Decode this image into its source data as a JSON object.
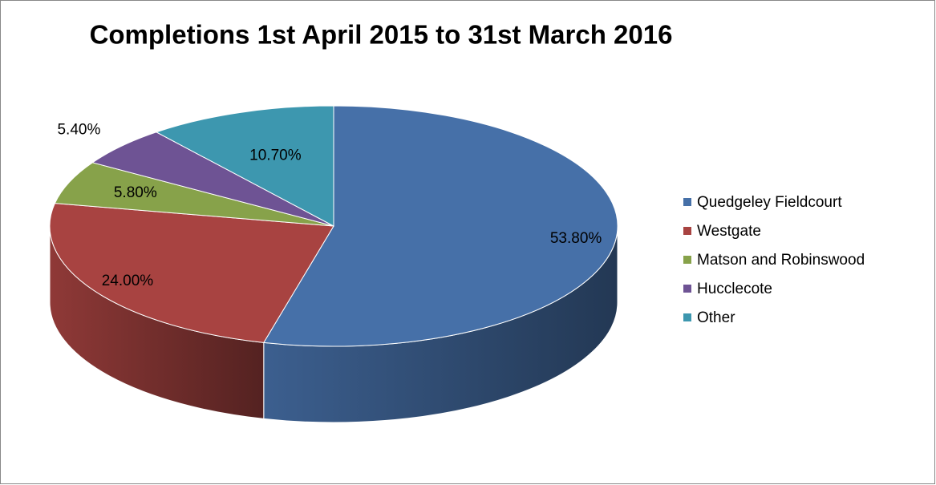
{
  "chart_data": {
    "type": "pie3d",
    "title": "Completions 1st April 2015 to 31st March 2016",
    "categories": [
      "Quedgeley Fieldcourt",
      "Westgate",
      "Matson and Robinswood",
      "Hucclecote",
      "Other"
    ],
    "values": [
      53.8,
      24.0,
      5.8,
      5.4,
      10.7
    ],
    "value_labels": [
      "53.80%",
      "24.00%",
      "5.80%",
      "5.40%",
      "10.70%"
    ],
    "colors": [
      "#4670a8",
      "#a84341",
      "#87a24a",
      "#6e5394",
      "#3d97af"
    ],
    "legend": "right"
  }
}
